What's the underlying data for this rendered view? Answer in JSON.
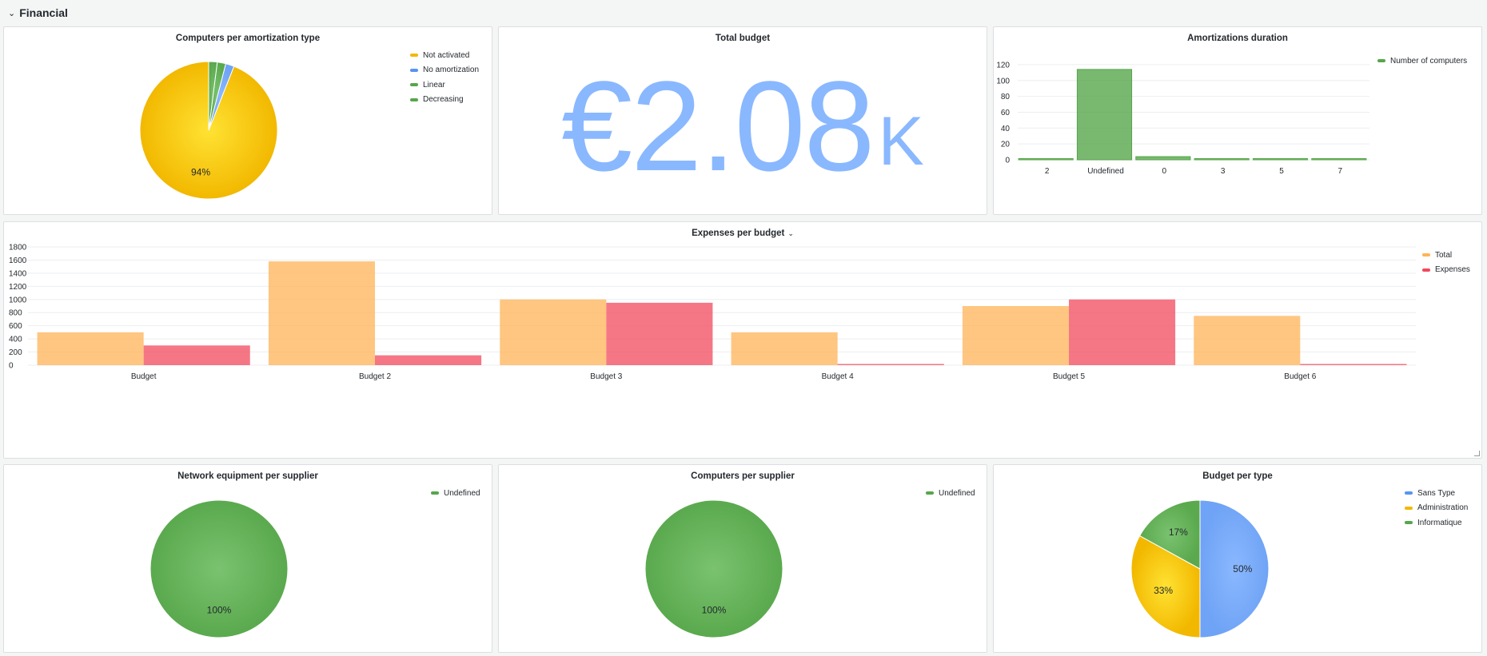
{
  "section": {
    "title": "Financial",
    "chevron": "chevron-down-icon"
  },
  "panels": {
    "amort_type": {
      "title": "Computers per amortization type",
      "legend": [
        {
          "label": "Not activated",
          "color": "#f2b800"
        },
        {
          "label": "No amortization",
          "color": "#5794f2"
        },
        {
          "label": "Linear",
          "color": "#56a64b"
        },
        {
          "label": "Decreasing",
          "color": "#56a64b"
        }
      ]
    },
    "total_budget": {
      "title": "Total budget",
      "value": "€2.08",
      "unit": "K",
      "color": "#8ab8ff"
    },
    "amort_duration": {
      "title": "Amortizations duration",
      "legend": [
        {
          "label": "Number of computers",
          "color": "#56a64b"
        }
      ]
    },
    "expenses": {
      "title": "Expenses per budget",
      "legend": [
        {
          "label": "Total",
          "color": "#ffb357"
        },
        {
          "label": "Expenses",
          "color": "#f2495c"
        }
      ]
    },
    "network_supplier": {
      "title": "Network equipment per supplier",
      "legend": [
        {
          "label": "Undefined",
          "color": "#56a64b"
        }
      ]
    },
    "computers_supplier": {
      "title": "Computers per supplier",
      "legend": [
        {
          "label": "Undefined",
          "color": "#56a64b"
        }
      ]
    },
    "budget_type": {
      "title": "Budget per type",
      "legend": [
        {
          "label": "Sans Type",
          "color": "#5794f2"
        },
        {
          "label": "Administration",
          "color": "#f2b800"
        },
        {
          "label": "Informatique",
          "color": "#56a64b"
        }
      ]
    }
  },
  "chart_data": [
    {
      "id": "amort_type",
      "type": "pie",
      "labels": [
        "Not activated",
        "No amortization",
        "Linear",
        "Decreasing"
      ],
      "values": [
        94,
        2,
        2,
        2
      ],
      "slice_labels": [
        "94%",
        "",
        "",
        ""
      ],
      "colors": [
        "#f2b800",
        "#5794f2",
        "#56a64b",
        "#56a64b"
      ]
    },
    {
      "id": "amort_duration",
      "type": "bar",
      "categories": [
        "2",
        "Undefined",
        "0",
        "3",
        "5",
        "7"
      ],
      "series": [
        {
          "name": "Number of computers",
          "values": [
            1,
            114,
            4,
            1,
            1,
            1
          ]
        }
      ],
      "yticks": [
        "0",
        "20",
        "40",
        "60",
        "80",
        "100",
        "120"
      ],
      "ylim": [
        0,
        130
      ],
      "grid": true,
      "legend": "top-right",
      "colors": [
        "#56a64b"
      ]
    },
    {
      "id": "expenses",
      "type": "bar",
      "categories": [
        "Budget",
        "Budget 2",
        "Budget 3",
        "Budget 4",
        "Budget 5",
        "Budget 6"
      ],
      "series": [
        {
          "name": "Total",
          "values": [
            500,
            1580,
            1000,
            500,
            900,
            750
          ]
        },
        {
          "name": "Expenses",
          "values": [
            300,
            150,
            950,
            5,
            1000,
            5
          ]
        }
      ],
      "yticks": [
        "0",
        "200",
        "400",
        "600",
        "800",
        "1000",
        "1200",
        "1400",
        "1600",
        "1800"
      ],
      "ylim": [
        0,
        1800
      ],
      "grid": true,
      "legend": "top-right",
      "colors": [
        "#ffb357",
        "#f2495c"
      ]
    },
    {
      "id": "network_supplier",
      "type": "pie",
      "labels": [
        "Undefined"
      ],
      "values": [
        100
      ],
      "slice_labels": [
        "100%"
      ],
      "colors": [
        "#56a64b"
      ]
    },
    {
      "id": "computers_supplier",
      "type": "pie",
      "labels": [
        "Undefined"
      ],
      "values": [
        100
      ],
      "slice_labels": [
        "100%"
      ],
      "colors": [
        "#56a64b"
      ]
    },
    {
      "id": "budget_type",
      "type": "pie",
      "labels": [
        "Sans Type",
        "Administration",
        "Informatique"
      ],
      "values": [
        50,
        33,
        17
      ],
      "slice_labels": [
        "50%",
        "33%",
        "17%"
      ],
      "colors": [
        "#5794f2",
        "#f2b800",
        "#56a64b"
      ]
    }
  ]
}
